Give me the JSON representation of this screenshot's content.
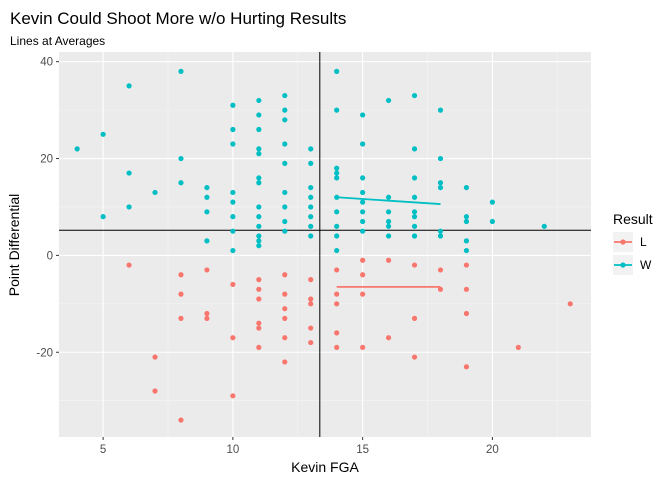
{
  "chart_data": {
    "type": "scatter",
    "title": "Kevin Could Shoot More w/o Hurting Results",
    "subtitle": "Lines at Averages",
    "xlabel": "Kevin FGA",
    "ylabel": "Point Differential",
    "xlim": [
      3.3,
      23.8
    ],
    "ylim": [
      -37.5,
      42
    ],
    "x_ticks": [
      5,
      10,
      15,
      20
    ],
    "y_ticks": [
      -20,
      0,
      20,
      40
    ],
    "x_tick_labels": [
      "5",
      "10",
      "15",
      "20"
    ],
    "y_tick_labels": [
      "-20",
      "0",
      "20",
      "40"
    ],
    "grid": true,
    "background": "#ebebeb",
    "legend": {
      "title": "Result",
      "position": "right",
      "entries": [
        {
          "label": "L",
          "color": "#f8766d"
        },
        {
          "label": "W",
          "color": "#00bfc4"
        }
      ]
    },
    "reference_lines": {
      "vertical_x": 13.35,
      "horizontal_y": 5.2
    },
    "series": [
      {
        "name": "L",
        "color": "#f8766d",
        "points": [
          [
            6,
            -2
          ],
          [
            7,
            -21
          ],
          [
            7,
            -28
          ],
          [
            8,
            -4
          ],
          [
            8,
            -8
          ],
          [
            8,
            -13
          ],
          [
            8,
            -34
          ],
          [
            9,
            -3
          ],
          [
            9,
            -12
          ],
          [
            9,
            -13
          ],
          [
            10,
            -6
          ],
          [
            10,
            -17
          ],
          [
            10,
            -29
          ],
          [
            11,
            -5
          ],
          [
            11,
            -7
          ],
          [
            11,
            -9
          ],
          [
            11,
            -14
          ],
          [
            11,
            -15
          ],
          [
            11,
            -19
          ],
          [
            12,
            -4
          ],
          [
            12,
            -8
          ],
          [
            12,
            -11
          ],
          [
            12,
            -13
          ],
          [
            12,
            -17
          ],
          [
            12,
            -22
          ],
          [
            13,
            -5
          ],
          [
            13,
            -9
          ],
          [
            13,
            -10
          ],
          [
            13,
            -15
          ],
          [
            13,
            -18
          ],
          [
            14,
            -3
          ],
          [
            14,
            -8
          ],
          [
            14,
            -10
          ],
          [
            14,
            -16
          ],
          [
            14,
            -19
          ],
          [
            15,
            -1
          ],
          [
            15,
            -4
          ],
          [
            15,
            -8
          ],
          [
            15,
            -19
          ],
          [
            16,
            -1
          ],
          [
            16,
            -17
          ],
          [
            17,
            -2
          ],
          [
            17,
            -13
          ],
          [
            17,
            -21
          ],
          [
            18,
            -3
          ],
          [
            18,
            -7
          ],
          [
            19,
            -2
          ],
          [
            19,
            -7
          ],
          [
            19,
            -12
          ],
          [
            19,
            -23
          ],
          [
            21,
            -19
          ],
          [
            23,
            -10
          ]
        ],
        "avg_line": {
          "x": [
            14,
            18
          ],
          "y": [
            -6.5,
            -6.5
          ]
        }
      },
      {
        "name": "W",
        "color": "#00bfc4",
        "points": [
          [
            4,
            22
          ],
          [
            5,
            8
          ],
          [
            5,
            25
          ],
          [
            6,
            10
          ],
          [
            6,
            17
          ],
          [
            6,
            35
          ],
          [
            7,
            13
          ],
          [
            8,
            15
          ],
          [
            8,
            20
          ],
          [
            8,
            38
          ],
          [
            9,
            3
          ],
          [
            9,
            9
          ],
          [
            9,
            12
          ],
          [
            9,
            14
          ],
          [
            10,
            1
          ],
          [
            10,
            5
          ],
          [
            10,
            8
          ],
          [
            10,
            11
          ],
          [
            10,
            13
          ],
          [
            10,
            23
          ],
          [
            10,
            26
          ],
          [
            10,
            31
          ],
          [
            11,
            2
          ],
          [
            11,
            3
          ],
          [
            11,
            4
          ],
          [
            11,
            6
          ],
          [
            11,
            8
          ],
          [
            11,
            10
          ],
          [
            11,
            15
          ],
          [
            11,
            16
          ],
          [
            11,
            21
          ],
          [
            11,
            22
          ],
          [
            11,
            26
          ],
          [
            11,
            29
          ],
          [
            11,
            32
          ],
          [
            12,
            5
          ],
          [
            12,
            7
          ],
          [
            12,
            10
          ],
          [
            12,
            13
          ],
          [
            12,
            19
          ],
          [
            12,
            23
          ],
          [
            12,
            28
          ],
          [
            12,
            30
          ],
          [
            12,
            33
          ],
          [
            13,
            4
          ],
          [
            13,
            6
          ],
          [
            13,
            8
          ],
          [
            13,
            10
          ],
          [
            13,
            12
          ],
          [
            13,
            14
          ],
          [
            13,
            19
          ],
          [
            13,
            22
          ],
          [
            14,
            1
          ],
          [
            14,
            4
          ],
          [
            14,
            6
          ],
          [
            14,
            9
          ],
          [
            14,
            12
          ],
          [
            14,
            16
          ],
          [
            14,
            17
          ],
          [
            14,
            18
          ],
          [
            14,
            30
          ],
          [
            14,
            38
          ],
          [
            15,
            5
          ],
          [
            15,
            7
          ],
          [
            15,
            9
          ],
          [
            15,
            11
          ],
          [
            15,
            13
          ],
          [
            15,
            16
          ],
          [
            15,
            23
          ],
          [
            15,
            29
          ],
          [
            16,
            4
          ],
          [
            16,
            6
          ],
          [
            16,
            7
          ],
          [
            16,
            9
          ],
          [
            16,
            12
          ],
          [
            16,
            32
          ],
          [
            17,
            4
          ],
          [
            17,
            6
          ],
          [
            17,
            8
          ],
          [
            17,
            9
          ],
          [
            17,
            12
          ],
          [
            17,
            16
          ],
          [
            17,
            22
          ],
          [
            17,
            33
          ],
          [
            18,
            4
          ],
          [
            18,
            5
          ],
          [
            18,
            14
          ],
          [
            18,
            15
          ],
          [
            18,
            20
          ],
          [
            18,
            30
          ],
          [
            19,
            1
          ],
          [
            19,
            3
          ],
          [
            19,
            7
          ],
          [
            19,
            8
          ],
          [
            19,
            14
          ],
          [
            20,
            7
          ],
          [
            20,
            11
          ],
          [
            22,
            6
          ]
        ],
        "avg_line": {
          "x": [
            14,
            18
          ],
          "y": [
            12.0,
            10.6
          ]
        }
      }
    ]
  }
}
